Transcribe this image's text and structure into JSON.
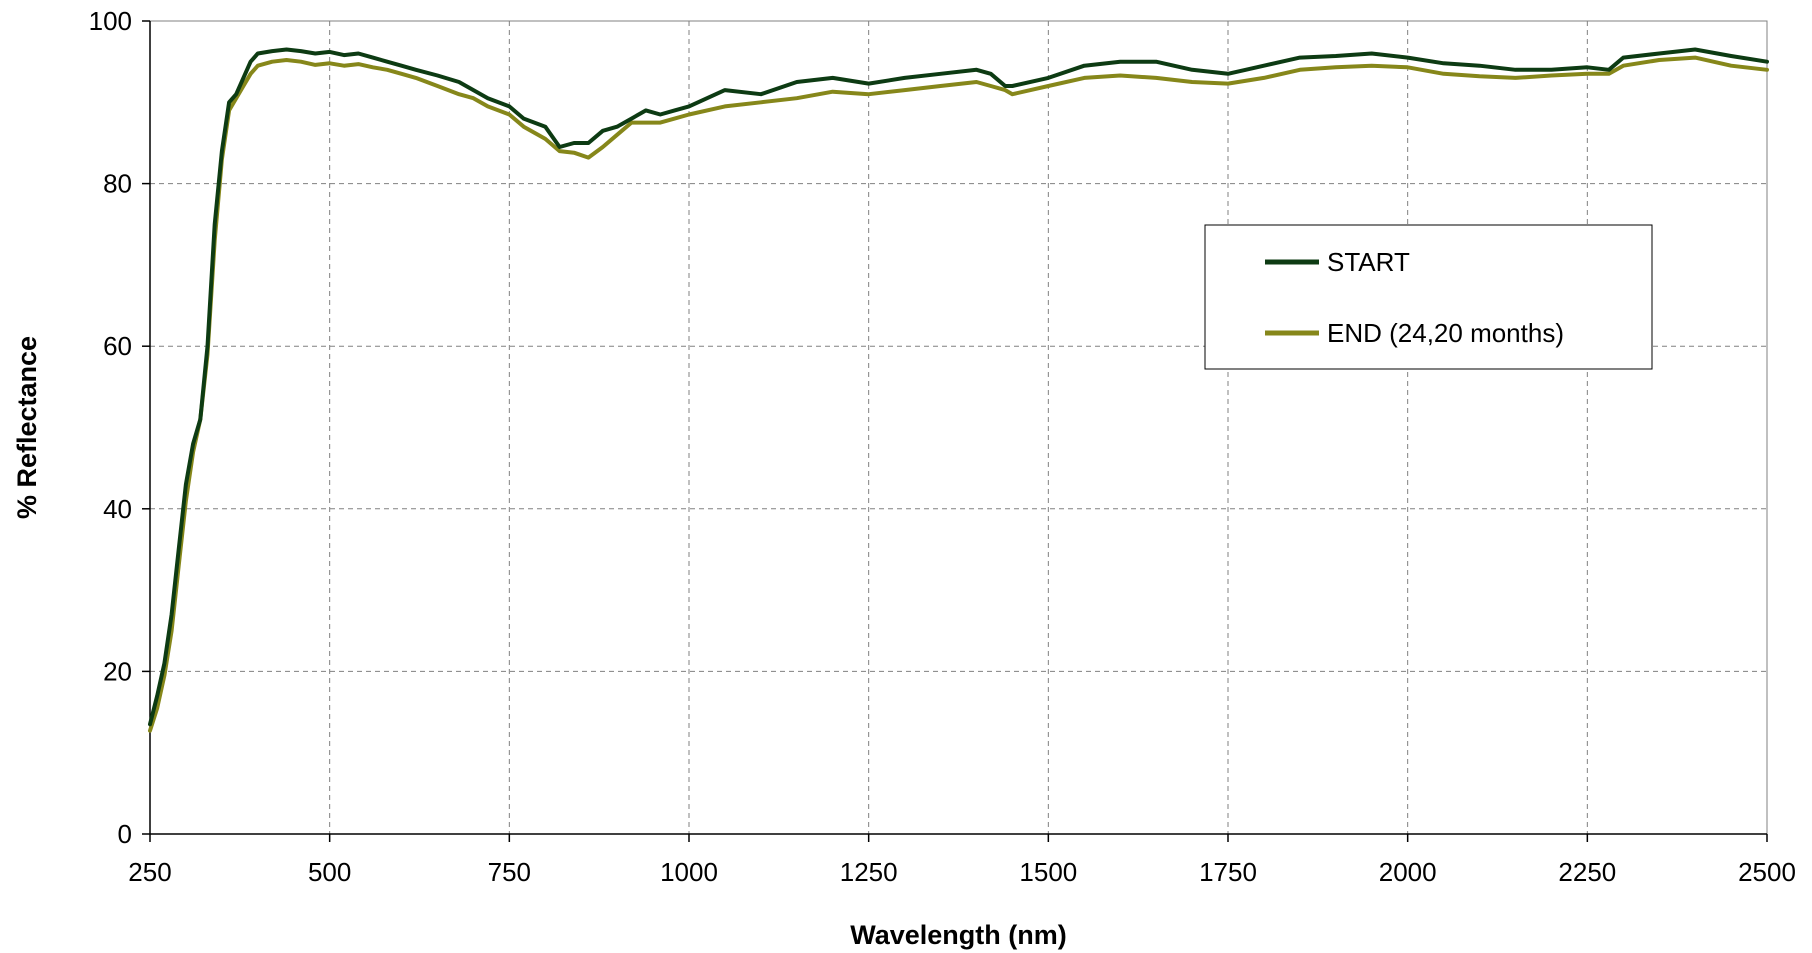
{
  "chart_data": {
    "type": "line",
    "title": "",
    "xlabel": "Wavelength (nm)",
    "ylabel": "% Reflectance",
    "xlim": [
      250,
      2500
    ],
    "ylim": [
      0,
      100
    ],
    "xticks": [
      250,
      500,
      750,
      1000,
      1250,
      1500,
      1750,
      2000,
      2250,
      2500
    ],
    "yticks": [
      0,
      20,
      40,
      60,
      80,
      100
    ],
    "xtick_labels": [
      "250",
      "500",
      "750",
      "1000",
      "1250",
      "1500",
      "1750",
      "2000",
      "2250",
      "2500"
    ],
    "ytick_labels": [
      "0",
      "20",
      "40",
      "60",
      "80",
      "100"
    ],
    "grid": true,
    "grid_style": "dashed",
    "legend_position": "center-right",
    "series": [
      {
        "name": "START",
        "color": "#0d3b13",
        "x": [
          250,
          260,
          270,
          280,
          290,
          300,
          310,
          320,
          330,
          340,
          350,
          360,
          370,
          380,
          390,
          400,
          420,
          440,
          460,
          480,
          500,
          520,
          540,
          560,
          580,
          600,
          620,
          650,
          680,
          700,
          720,
          750,
          770,
          800,
          820,
          840,
          860,
          880,
          900,
          920,
          940,
          960,
          980,
          1000,
          1050,
          1100,
          1150,
          1200,
          1250,
          1300,
          1350,
          1400,
          1420,
          1440,
          1450,
          1500,
          1550,
          1600,
          1650,
          1700,
          1750,
          1800,
          1850,
          1900,
          1950,
          2000,
          2050,
          2100,
          2150,
          2200,
          2250,
          2280,
          2300,
          2350,
          2400,
          2450,
          2500
        ],
        "y": [
          13.5,
          17,
          21,
          27,
          35,
          43,
          48,
          51,
          60,
          75,
          84,
          90,
          91,
          93,
          95,
          96,
          96.3,
          96.5,
          96.3,
          96,
          96.2,
          95.8,
          96,
          95.5,
          95,
          94.5,
          94,
          93.3,
          92.5,
          91.5,
          90.5,
          89.5,
          88,
          87,
          84.5,
          85,
          85,
          86.5,
          87,
          88,
          89,
          88.5,
          89,
          89.5,
          91.5,
          91,
          92.5,
          93,
          92.3,
          93,
          93.5,
          94,
          93.5,
          92,
          92,
          93,
          94.5,
          95,
          95,
          94,
          93.5,
          94.5,
          95.5,
          95.7,
          96,
          95.5,
          94.8,
          94.5,
          94,
          94,
          94.3,
          94,
          95.5,
          96,
          96.5,
          95.7,
          95
        ]
      },
      {
        "name": "END (24,20 months)",
        "color": "#86871a",
        "x": [
          250,
          260,
          270,
          280,
          290,
          300,
          310,
          320,
          330,
          340,
          350,
          360,
          370,
          380,
          390,
          400,
          420,
          440,
          460,
          480,
          500,
          520,
          540,
          560,
          580,
          600,
          620,
          650,
          680,
          700,
          720,
          750,
          770,
          800,
          820,
          840,
          860,
          880,
          900,
          920,
          940,
          960,
          980,
          1000,
          1050,
          1100,
          1150,
          1200,
          1250,
          1300,
          1350,
          1400,
          1420,
          1440,
          1450,
          1500,
          1550,
          1600,
          1650,
          1700,
          1750,
          1800,
          1850,
          1900,
          1950,
          2000,
          2050,
          2100,
          2150,
          2200,
          2250,
          2280,
          2300,
          2350,
          2400,
          2450,
          2500
        ],
        "y": [
          12.7,
          15.5,
          19.5,
          25,
          33,
          41,
          47,
          51,
          59,
          73,
          83,
          89,
          90.5,
          92,
          93.5,
          94.5,
          95,
          95.2,
          95,
          94.6,
          94.8,
          94.5,
          94.7,
          94.3,
          94,
          93.5,
          93,
          92,
          91,
          90.5,
          89.5,
          88.5,
          87,
          85.5,
          84,
          83.8,
          83.2,
          84.5,
          86,
          87.5,
          87.5,
          87.5,
          88,
          88.5,
          89.5,
          90,
          90.5,
          91.3,
          91,
          91.5,
          92,
          92.5,
          92,
          91.5,
          91,
          92,
          93,
          93.3,
          93,
          92.5,
          92.3,
          93,
          94,
          94.3,
          94.5,
          94.3,
          93.5,
          93.2,
          93,
          93.3,
          93.5,
          93.5,
          94.5,
          95.2,
          95.5,
          94.5,
          94
        ]
      }
    ]
  }
}
